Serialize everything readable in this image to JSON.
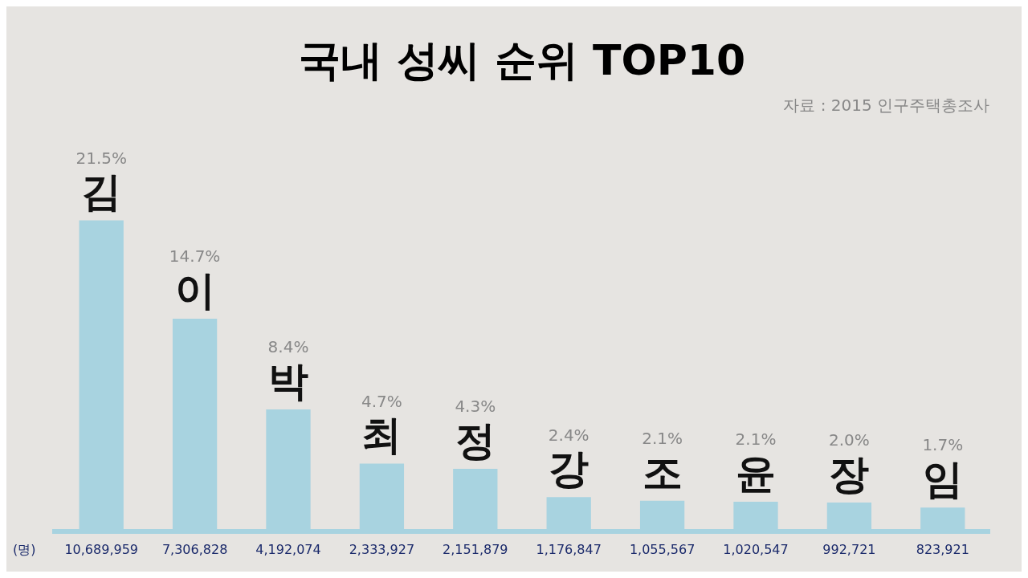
{
  "chart_data": {
    "type": "bar",
    "title": "국내 성씨 순위 TOP10",
    "subtitle": "자료 : 2015 인구주택총조사",
    "ylabel": "(명)",
    "categories": [
      "김",
      "이",
      "박",
      "최",
      "정",
      "강",
      "조",
      "윤",
      "장",
      "임"
    ],
    "values": [
      10689959,
      7306828,
      4192074,
      2333927,
      2151879,
      1176847,
      1055567,
      1020547,
      992721,
      823921
    ],
    "value_labels": [
      "10,689,959",
      "7,306,828",
      "4,192,074",
      "2,333,927",
      "2,151,879",
      "1,176,847",
      "1,055,567",
      "1,020,547",
      "992,721",
      "823,921"
    ],
    "color": "#a8d3e0",
    "annotations": [
      "21.5%",
      "14.7%",
      "8.4%",
      "4.7%",
      "4.3%",
      "2.4%",
      "2.1%",
      "2.1%",
      "2.0%",
      "1.7%"
    ]
  }
}
